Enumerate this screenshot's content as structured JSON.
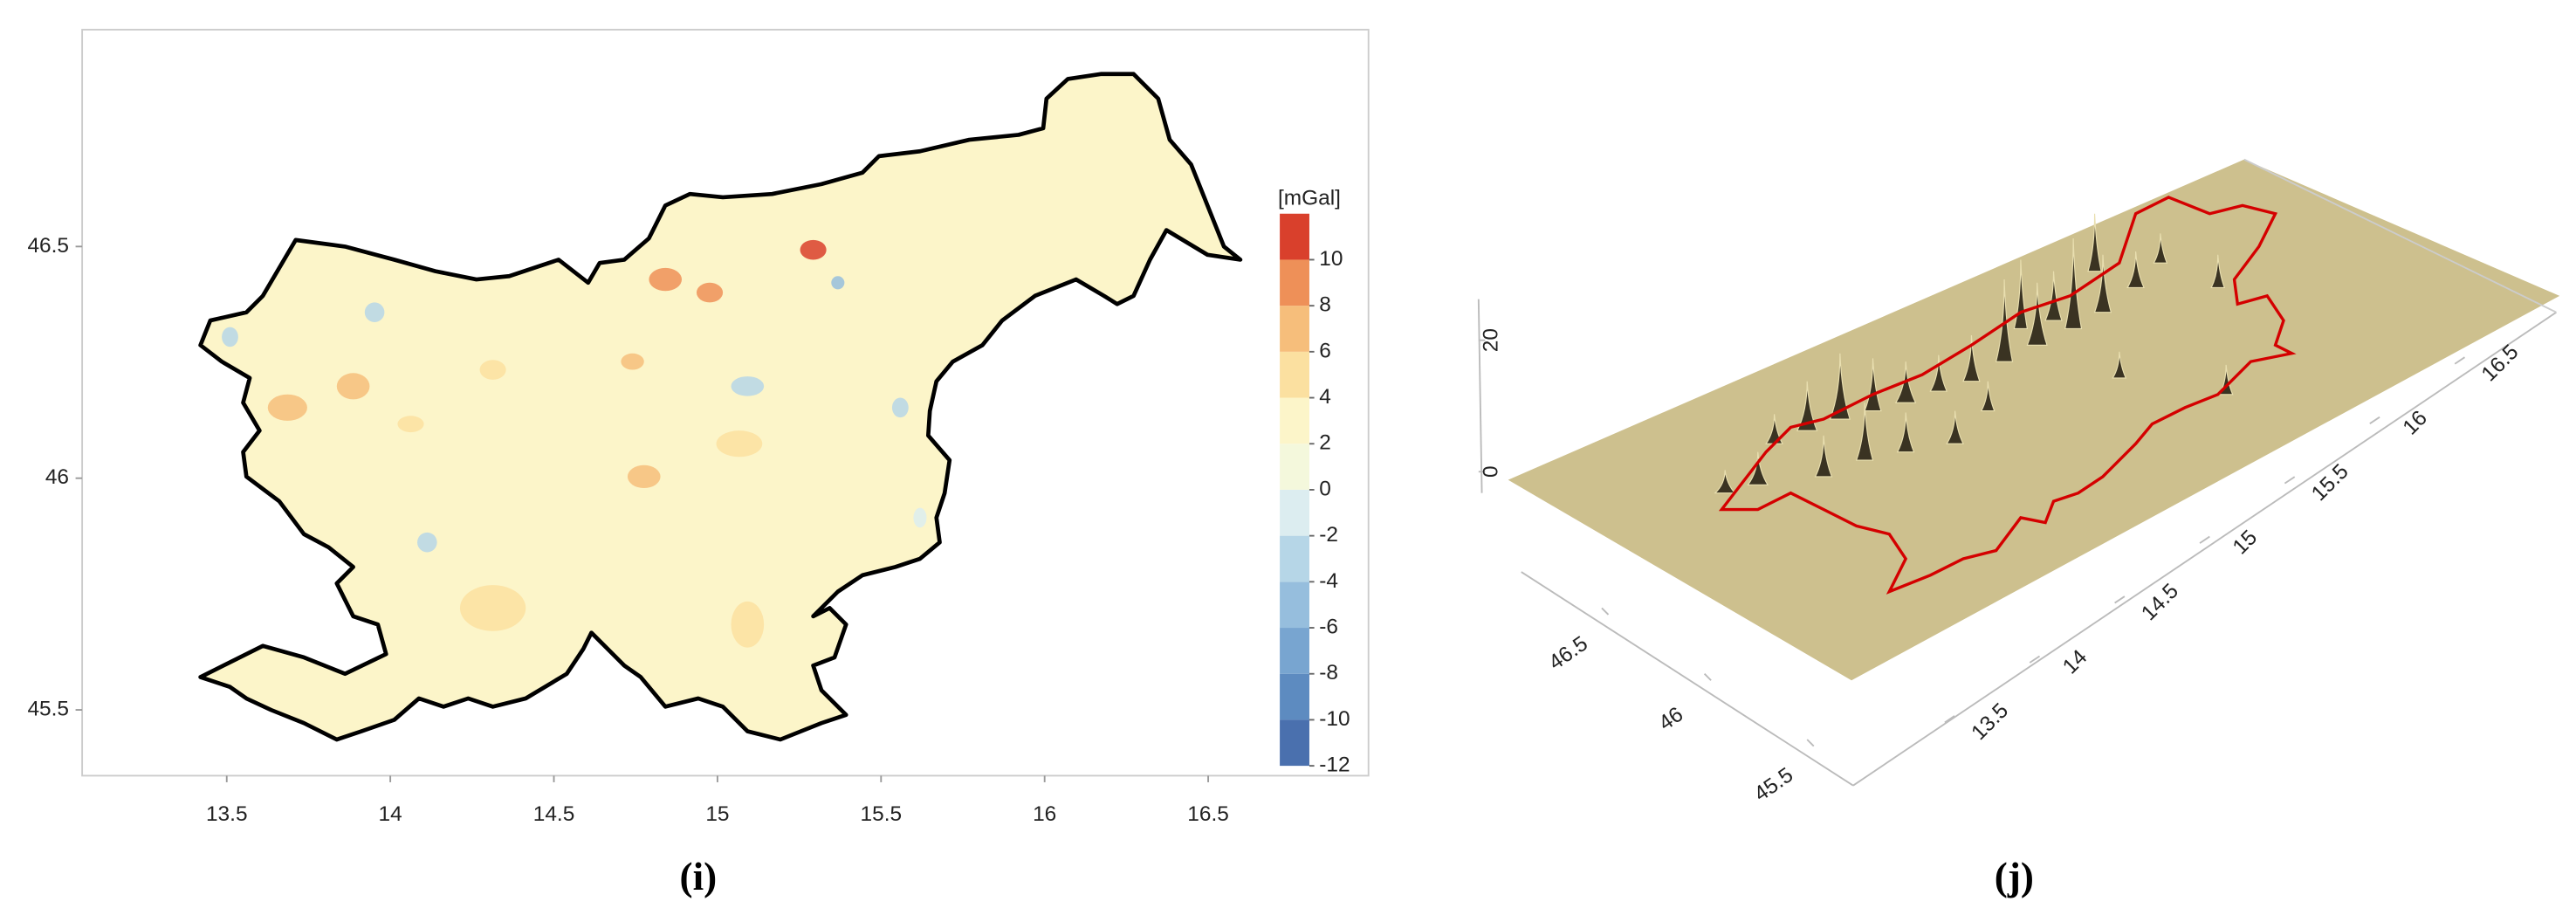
{
  "chart_data": [
    {
      "type": "contour",
      "caption": "(i)",
      "xlim": [
        13.058,
        16.99
      ],
      "ylim": [
        45.358,
        46.968
      ],
      "xticks": [
        13.5,
        14,
        14.5,
        15,
        15.5,
        16,
        16.5
      ],
      "yticks": [
        45.5,
        46,
        46.5
      ],
      "colorbar": {
        "label": "[mGal]",
        "lim": [
          -12,
          12
        ],
        "ticks": [
          10,
          8,
          6,
          4,
          2,
          0,
          -2,
          -4,
          -6,
          -8,
          -10,
          -12
        ],
        "colors": [
          "#4a70ae",
          "#5d8bc0",
          "#78a5d0",
          "#96bedd",
          "#b6d6e7",
          "#dcedf0",
          "#f4f8dc",
          "#fcf5c9",
          "#fbe0a0",
          "#f6be7b",
          "#ee9058",
          "#d9402c"
        ]
      },
      "outline_color": "#000000"
    },
    {
      "type": "surface3d",
      "caption": "(j)",
      "xlim": [
        13,
        17
      ],
      "ylim": [
        45.3,
        46.9
      ],
      "zlim": [
        0,
        25
      ],
      "xticks": [
        13.5,
        14,
        14.5,
        15,
        15.5,
        16,
        16.5
      ],
      "yticks": [
        45.5,
        46,
        46.5
      ],
      "zticks": [
        0,
        20
      ],
      "surface_color": "#cdc08e",
      "outline_color": "#d40000"
    }
  ]
}
